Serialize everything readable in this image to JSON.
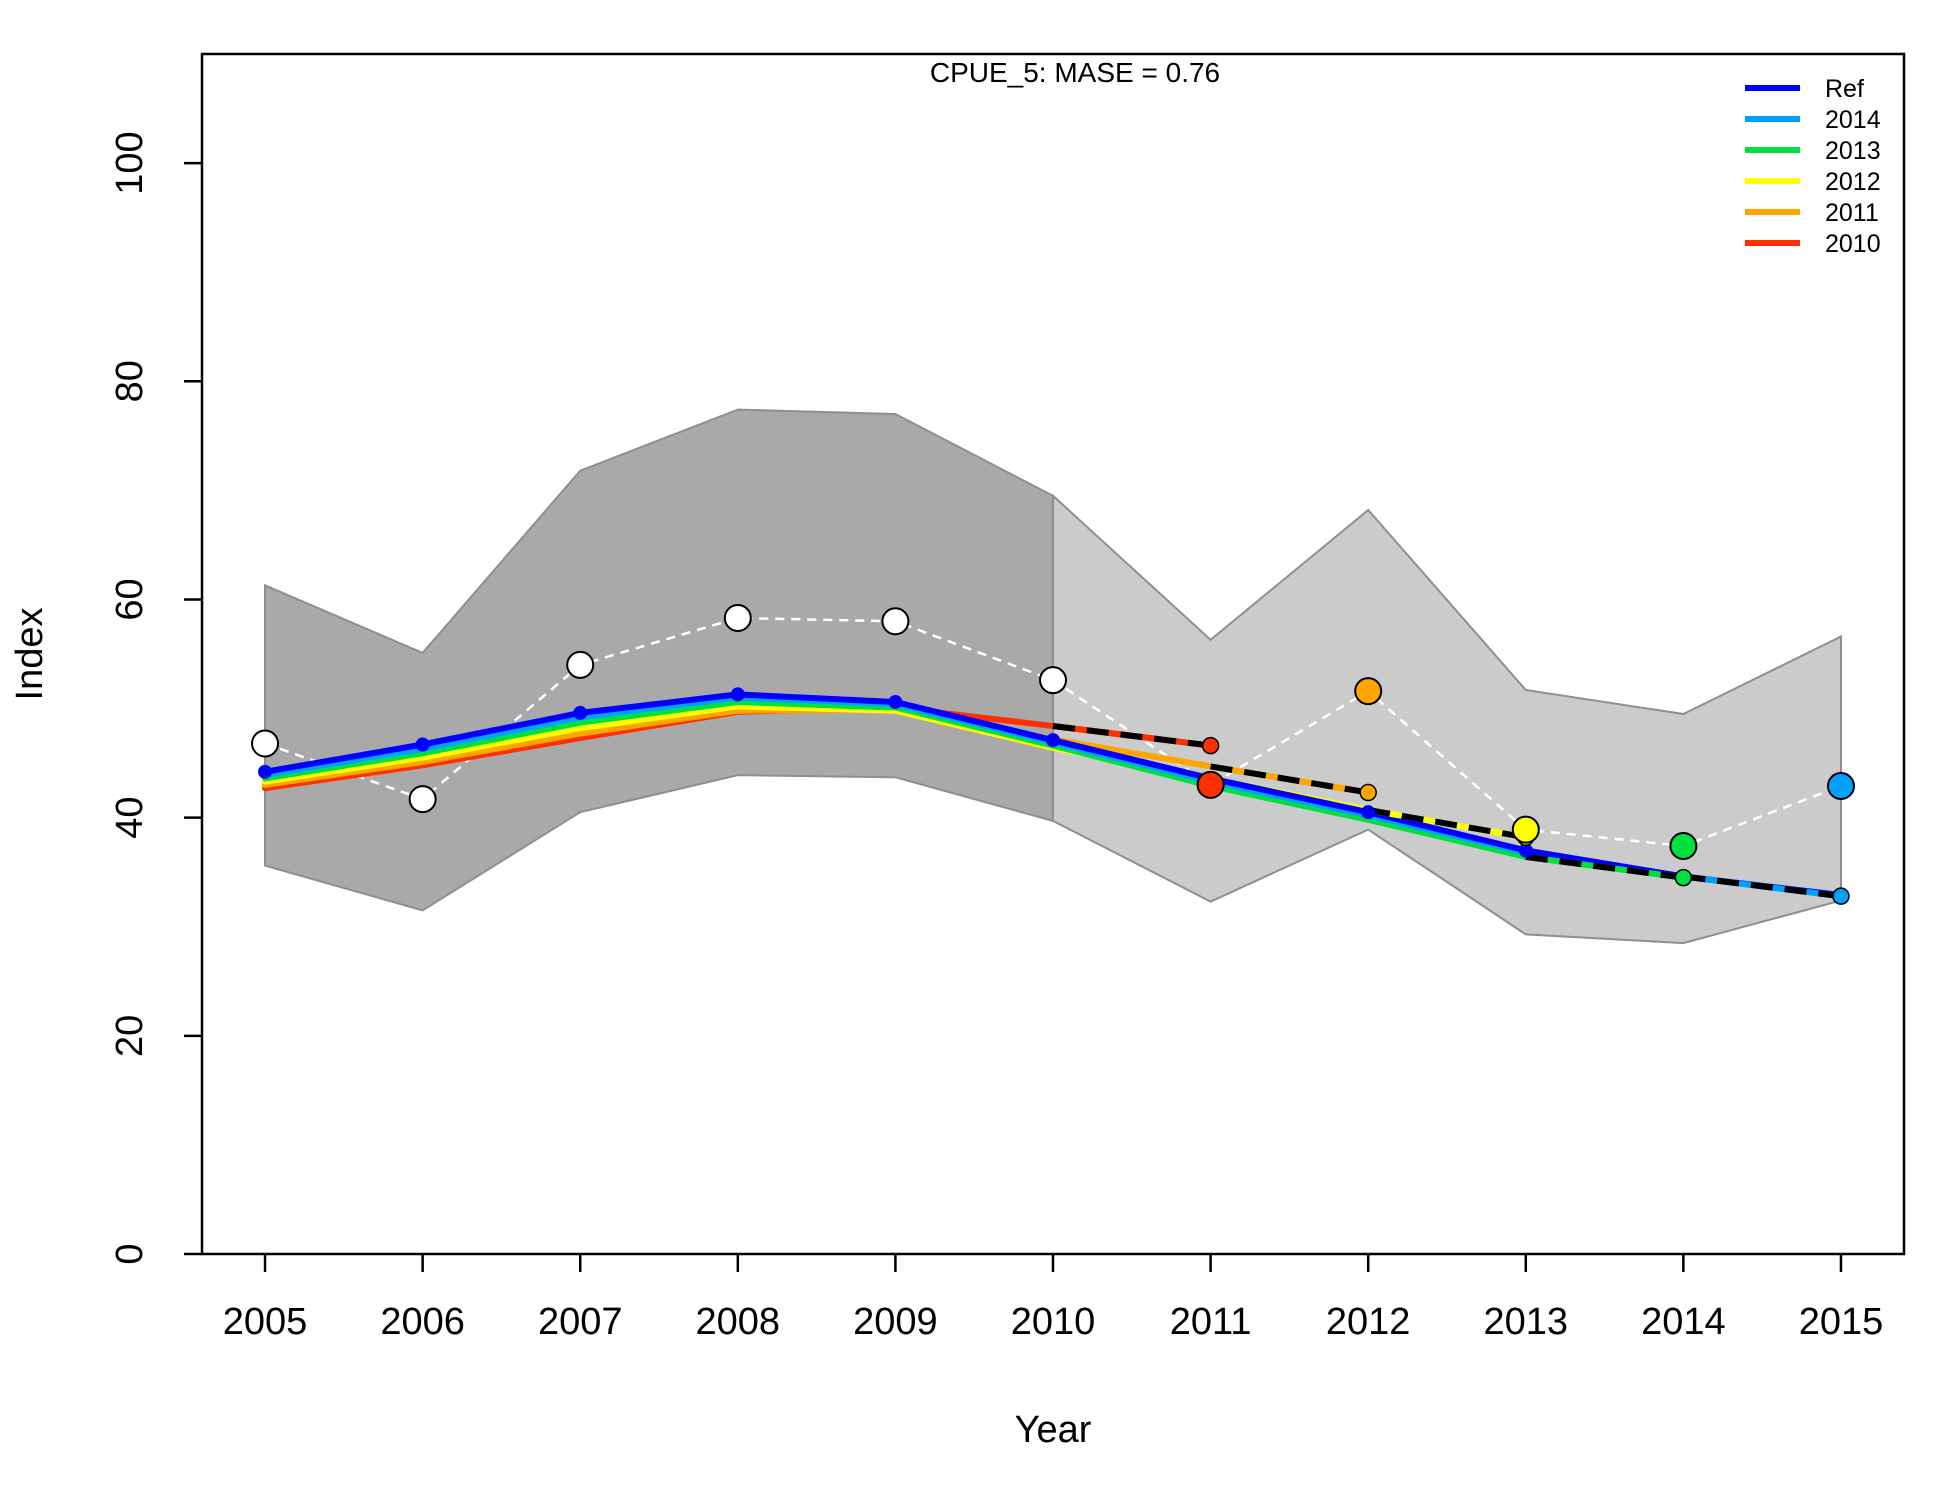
{
  "chart_data": {
    "type": "line",
    "title": "CPUE_5: MASE = 0.76",
    "xlabel": "Year",
    "ylabel": "Index",
    "xlim": [
      2004.6,
      2015.4
    ],
    "ylim": [
      0,
      110
    ],
    "x_ticks": [
      2005,
      2006,
      2007,
      2008,
      2009,
      2010,
      2011,
      2012,
      2013,
      2014,
      2015
    ],
    "x_tick_labels": [
      "2005",
      "2006",
      "2007",
      "2008",
      "2009",
      "2010",
      "2011",
      "2012",
      "2013",
      "2014",
      "2015"
    ],
    "y_ticks": [
      0,
      20,
      40,
      60,
      80,
      100
    ],
    "y_tick_labels": [
      "0",
      "20",
      "40",
      "60",
      "80",
      "100"
    ],
    "grid": false,
    "legend_position": "top-right",
    "legend": [
      {
        "label": "Ref",
        "color": "#0000ff"
      },
      {
        "label": "2014",
        "color": "#00a0ff"
      },
      {
        "label": "2013",
        "color": "#00e040"
      },
      {
        "label": "2012",
        "color": "#ffff00"
      },
      {
        "label": "2011",
        "color": "#ffa500"
      },
      {
        "label": "2010",
        "color": "#ff3000"
      }
    ],
    "band_dark": {
      "x": [
        2005,
        2006,
        2007,
        2008,
        2009,
        2010
      ],
      "upper": [
        61.3,
        55.1,
        71.8,
        77.4,
        77.0,
        69.5
      ],
      "lower": [
        35.6,
        31.5,
        40.5,
        43.9,
        43.7,
        39.7
      ],
      "color": "#a9a9a9"
    },
    "band_light": {
      "x": [
        2010,
        2011,
        2012,
        2013,
        2014,
        2015
      ],
      "upper": [
        69.5,
        56.3,
        68.2,
        51.7,
        49.5,
        56.6
      ],
      "lower": [
        39.7,
        32.3,
        38.9,
        29.3,
        28.5,
        32.4
      ],
      "color": "#cbcbcb"
    },
    "observed": {
      "x": [
        2005,
        2006,
        2007,
        2008,
        2009,
        2010,
        2011,
        2012,
        2013,
        2014,
        2015
      ],
      "y": [
        46.8,
        41.7,
        54.0,
        58.3,
        58.0,
        52.6,
        43.0,
        51.6,
        38.9,
        37.4,
        42.9
      ],
      "fill_colors": [
        "#ffffff",
        "#ffffff",
        "#ffffff",
        "#ffffff",
        "#ffffff",
        "#ffffff",
        "#ff3000",
        "#ffa500",
        "#ffff00",
        "#00e040",
        "#00a0ff"
      ]
    },
    "series": [
      {
        "name": "Ref",
        "color": "#0000ff",
        "x": [
          2005,
          2006,
          2007,
          2008,
          2009,
          2010,
          2011,
          2012,
          2013,
          2014,
          2015
        ],
        "y": [
          44.2,
          46.7,
          49.6,
          51.3,
          50.6,
          47.1,
          43.6,
          40.5,
          37.0,
          34.6,
          32.9
        ]
      },
      {
        "name": "2014",
        "color": "#00a0ff",
        "x": [
          2005,
          2006,
          2007,
          2008,
          2009,
          2010,
          2011,
          2012,
          2013,
          2014,
          2015
        ],
        "y": [
          43.9,
          46.3,
          49.2,
          51.0,
          50.4,
          46.9,
          43.3,
          40.2,
          36.8,
          34.6,
          32.8
        ]
      },
      {
        "name": "2013",
        "color": "#00e040",
        "x": [
          2005,
          2006,
          2007,
          2008,
          2009,
          2010,
          2011,
          2012,
          2013,
          2014
        ],
        "y": [
          43.6,
          45.9,
          48.7,
          50.6,
          50.1,
          46.6,
          42.9,
          39.8,
          36.4,
          34.5
        ]
      },
      {
        "name": "2012",
        "color": "#ffff00",
        "x": [
          2005,
          2006,
          2007,
          2008,
          2009,
          2010,
          2011,
          2012,
          2013
        ],
        "y": [
          43.3,
          45.5,
          48.2,
          50.2,
          49.8,
          46.4,
          43.6,
          40.7,
          38.2
        ]
      },
      {
        "name": "2011",
        "color": "#ffa500",
        "x": [
          2005,
          2006,
          2007,
          2008,
          2009,
          2010,
          2011,
          2012
        ],
        "y": [
          43.0,
          45.1,
          47.7,
          49.8,
          49.9,
          47.2,
          44.7,
          42.3
        ]
      },
      {
        "name": "2010",
        "color": "#ff3000",
        "x": [
          2005,
          2006,
          2007,
          2008,
          2009,
          2010,
          2011
        ],
        "y": [
          42.7,
          44.8,
          47.3,
          49.7,
          50.1,
          48.4,
          46.6
        ]
      }
    ],
    "forecast_dashed": {
      "color": "#000000",
      "segments": [
        {
          "x": [
            2010,
            2011
          ],
          "y": [
            48.4,
            46.6
          ]
        },
        {
          "x": [
            2011,
            2012
          ],
          "y": [
            44.7,
            42.3
          ]
        },
        {
          "x": [
            2012,
            2013
          ],
          "y": [
            40.7,
            38.2
          ]
        },
        {
          "x": [
            2013,
            2014
          ],
          "y": [
            36.4,
            34.5
          ]
        },
        {
          "x": [
            2014,
            2015
          ],
          "y": [
            34.6,
            32.8
          ]
        }
      ]
    }
  }
}
